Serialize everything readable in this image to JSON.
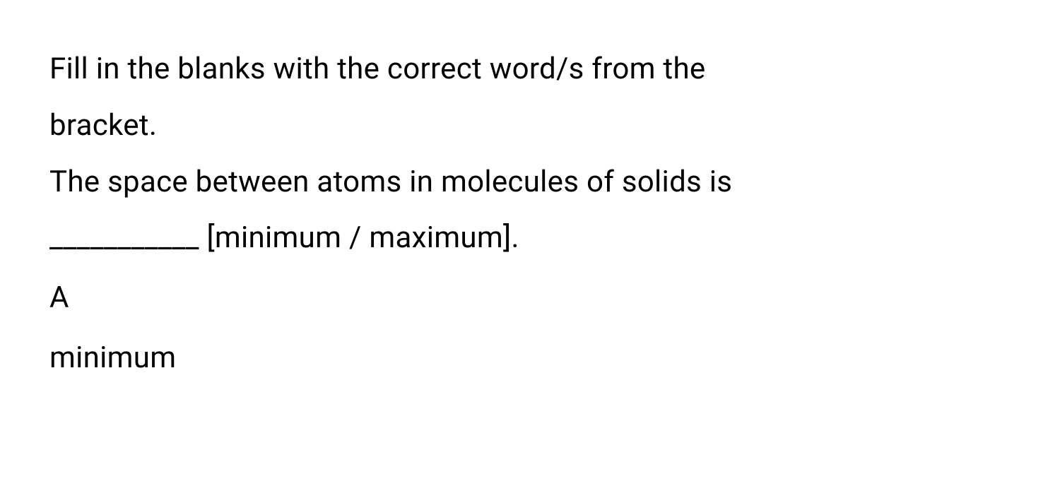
{
  "question": {
    "instruction_line1": "Fill in the blanks with the correct word/s from the",
    "instruction_line2": "bracket.",
    "statement_line1": "The space between atoms in molecules of solids is",
    "statement_line2": "___________ [minimum / maximum].",
    "option_label": "A",
    "option_text": "minimum"
  },
  "style": {
    "font_size_pt": 42,
    "text_color": "#000000",
    "background_color": "#ffffff",
    "line_height": 1.9
  }
}
